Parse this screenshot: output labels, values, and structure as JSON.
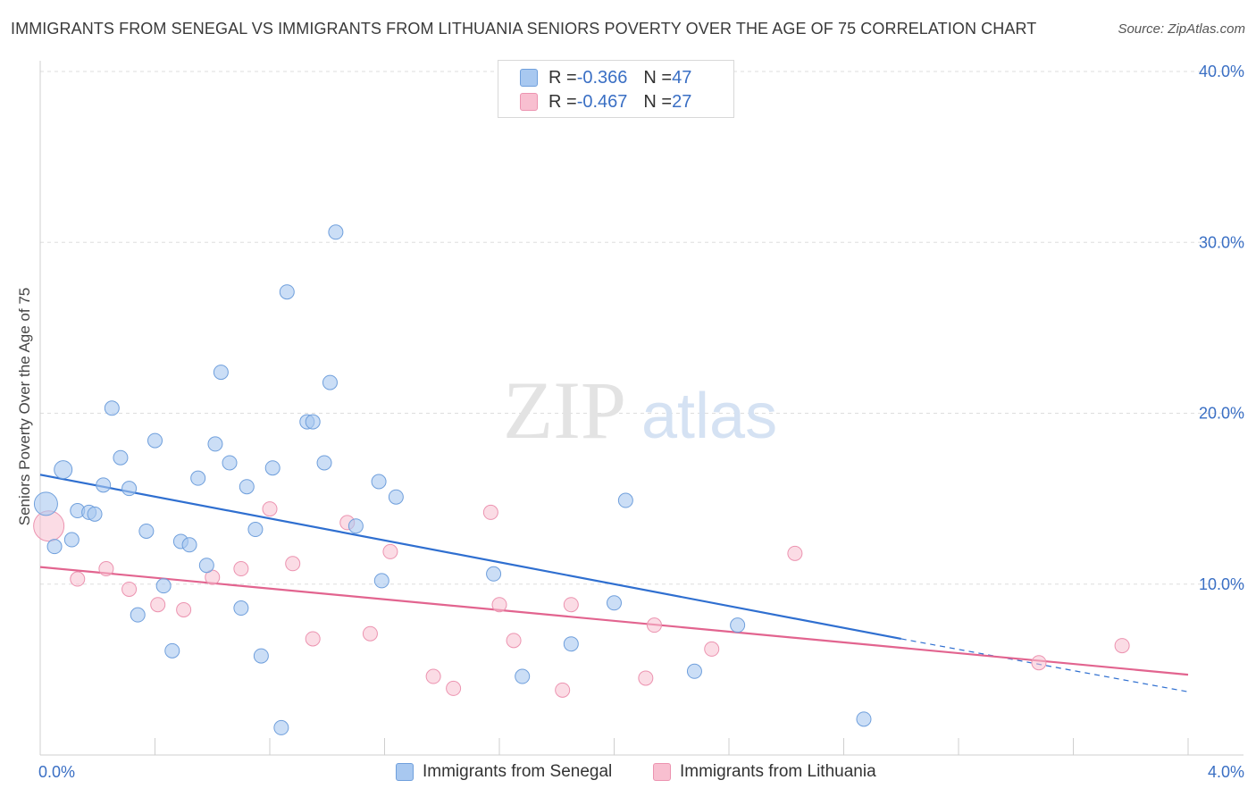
{
  "title": "IMMIGRANTS FROM SENEGAL VS IMMIGRANTS FROM LITHUANIA SENIORS POVERTY OVER THE AGE OF 75 CORRELATION CHART",
  "source": "Source: ZipAtlas.com",
  "watermark": {
    "zip": "ZIP",
    "atlas": "atlas"
  },
  "colors": {
    "senegal_fill": "#a8c8f0",
    "senegal_stroke": "#6f9fdc",
    "senegal_line": "#2f6fd0",
    "lithuania_fill": "#f8bfd0",
    "lithuania_stroke": "#ec93b0",
    "lithuania_line": "#e2648f",
    "tick_label": "#3a6fc4",
    "grid": "#dddddd"
  },
  "legend": {
    "rows": [
      {
        "r_label": "R = ",
        "r_value": "-0.366",
        "n_label": "N = ",
        "n_value": "47"
      },
      {
        "r_label": "R = ",
        "r_value": "-0.467",
        "n_label": "N = ",
        "n_value": "27"
      }
    ]
  },
  "chart_data": {
    "type": "scatter",
    "title": "IMMIGRANTS FROM SENEGAL VS IMMIGRANTS FROM LITHUANIA SENIORS POVERTY OVER THE AGE OF 75 CORRELATION CHART",
    "xlabel": "",
    "ylabel": "Seniors Poverty Over the Age of 75",
    "xlim": [
      0,
      4
    ],
    "ylim": [
      0,
      40
    ],
    "x_tick_labels": [
      {
        "value": 0,
        "label": "0.0%"
      },
      {
        "value": 4,
        "label": "4.0%"
      }
    ],
    "y_tick_labels": [
      {
        "value": 10,
        "label": "10.0%"
      },
      {
        "value": 20,
        "label": "20.0%"
      },
      {
        "value": 30,
        "label": "30.0%"
      },
      {
        "value": 40,
        "label": "40.0%"
      }
    ],
    "grid": true,
    "legend_position": "top-center",
    "series": [
      {
        "name": "Immigrants from Senegal",
        "points": [
          [
            0.02,
            14.7
          ],
          [
            0.05,
            12.2
          ],
          [
            0.08,
            16.7
          ],
          [
            0.11,
            12.6
          ],
          [
            0.13,
            14.3
          ],
          [
            0.17,
            14.2
          ],
          [
            0.19,
            14.1
          ],
          [
            0.22,
            15.8
          ],
          [
            0.25,
            20.3
          ],
          [
            0.28,
            17.4
          ],
          [
            0.31,
            15.6
          ],
          [
            0.34,
            8.2
          ],
          [
            0.37,
            13.1
          ],
          [
            0.4,
            18.4
          ],
          [
            0.43,
            9.9
          ],
          [
            0.46,
            6.1
          ],
          [
            0.49,
            12.5
          ],
          [
            0.52,
            12.3
          ],
          [
            0.55,
            16.2
          ],
          [
            0.58,
            11.1
          ],
          [
            0.61,
            18.2
          ],
          [
            0.63,
            22.4
          ],
          [
            0.66,
            17.1
          ],
          [
            0.7,
            8.6
          ],
          [
            0.72,
            15.7
          ],
          [
            0.75,
            13.2
          ],
          [
            0.77,
            5.8
          ],
          [
            0.81,
            16.8
          ],
          [
            0.84,
            1.6
          ],
          [
            0.86,
            27.1
          ],
          [
            0.93,
            19.5
          ],
          [
            0.95,
            19.5
          ],
          [
            0.99,
            17.1
          ],
          [
            1.01,
            21.8
          ],
          [
            1.03,
            30.6
          ],
          [
            1.1,
            13.4
          ],
          [
            1.18,
            16.0
          ],
          [
            1.19,
            10.2
          ],
          [
            1.24,
            15.1
          ],
          [
            1.58,
            10.6
          ],
          [
            1.68,
            4.6
          ],
          [
            1.85,
            6.5
          ],
          [
            2.0,
            8.9
          ],
          [
            2.04,
            14.9
          ],
          [
            2.28,
            4.9
          ],
          [
            2.43,
            7.6
          ],
          [
            2.87,
            2.1
          ]
        ]
      },
      {
        "name": "Immigrants from Lithuania",
        "points": [
          [
            0.03,
            13.4
          ],
          [
            0.13,
            10.3
          ],
          [
            0.23,
            10.9
          ],
          [
            0.31,
            9.7
          ],
          [
            0.41,
            8.8
          ],
          [
            0.5,
            8.5
          ],
          [
            0.6,
            10.4
          ],
          [
            0.7,
            10.9
          ],
          [
            0.8,
            14.4
          ],
          [
            0.88,
            11.2
          ],
          [
            0.95,
            6.8
          ],
          [
            1.07,
            13.6
          ],
          [
            1.15,
            7.1
          ],
          [
            1.22,
            11.9
          ],
          [
            1.37,
            4.6
          ],
          [
            1.44,
            3.9
          ],
          [
            1.57,
            14.2
          ],
          [
            1.6,
            8.8
          ],
          [
            1.65,
            6.7
          ],
          [
            1.82,
            3.8
          ],
          [
            1.85,
            8.8
          ],
          [
            2.11,
            4.5
          ],
          [
            2.14,
            7.6
          ],
          [
            2.34,
            6.2
          ],
          [
            2.63,
            11.8
          ],
          [
            3.48,
            5.4
          ],
          [
            3.77,
            6.4
          ]
        ]
      }
    ],
    "trend_lines": [
      {
        "series": "Immigrants from Senegal",
        "x0": 0,
        "y0": 16.4,
        "x1": 3.0,
        "y1": 6.8,
        "x_dash_end": 4.0,
        "y_dash_end": 3.7
      },
      {
        "series": "Immigrants from Lithuania",
        "x0": 0,
        "y0": 11.0,
        "x1": 4.0,
        "y1": 4.7
      }
    ]
  },
  "bottom_legend": {
    "senegal": "Immigrants from Senegal",
    "lithuania": "Immigrants from Lithuania"
  }
}
